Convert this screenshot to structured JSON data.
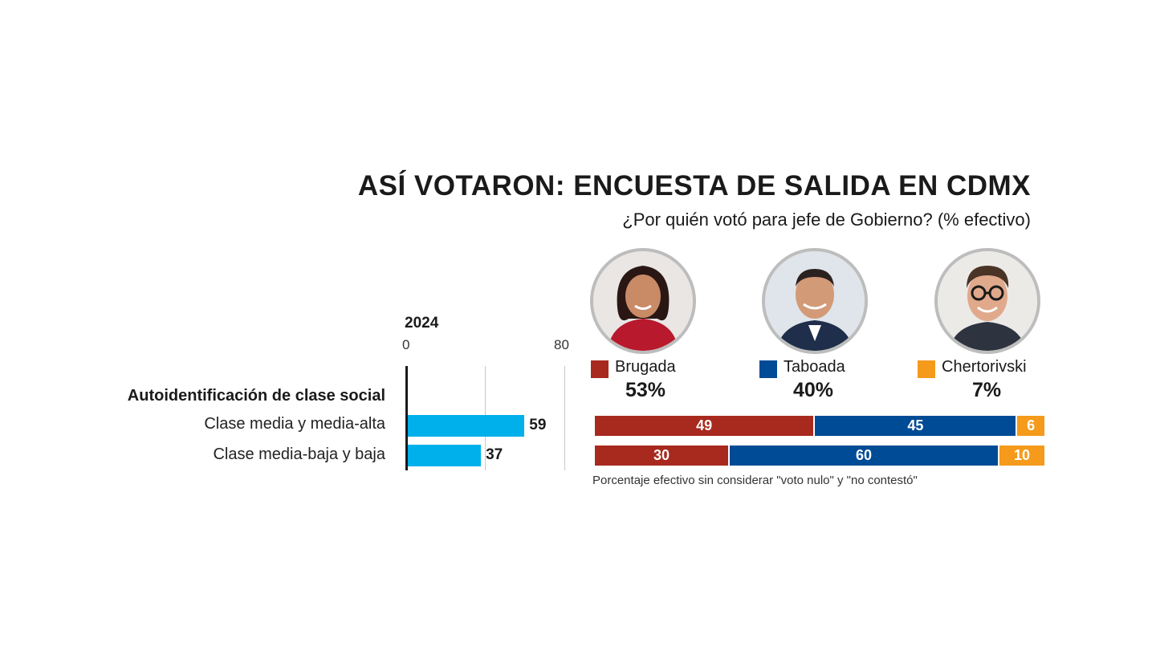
{
  "header": {
    "title": "ASÍ VOTARON: ENCUESTA DE SALIDA EN CDMX",
    "subtitle": "¿Por quién votó para jefe de Gobierno? (% efectivo)"
  },
  "colors": {
    "brugada": "#a8291e",
    "taboada": "#004b96",
    "chertorivski": "#f59a1b",
    "bar_2024": "#00b0ea"
  },
  "candidates": [
    {
      "name": "Brugada",
      "pct": "53%",
      "photo_icon": "candidate-photo-brugada"
    },
    {
      "name": "Taboada",
      "pct": "40%",
      "photo_icon": "candidate-photo-taboada"
    },
    {
      "name": "Chertorivski",
      "pct": "7%",
      "photo_icon": "candidate-photo-chertorivski"
    }
  ],
  "left_chart": {
    "year": "2024",
    "tick_min": "0",
    "tick_max": "80",
    "section_label": "Autoidentificación de clase social"
  },
  "footnote": "Porcentaje efectivo sin considerar \"voto nulo\" y \"no contestó\"",
  "chart_data": [
    {
      "type": "bar",
      "title": "2024",
      "categories": [
        "Clase media y media-alta",
        "Clase media-baja y baja"
      ],
      "values": [
        59,
        37
      ],
      "xlim": [
        0,
        80
      ],
      "grid": true
    },
    {
      "type": "bar",
      "stacked": true,
      "title": "¿Por quién votó para jefe de Gobierno? (% efectivo)",
      "categories": [
        "Clase media y media-alta",
        "Clase media-baja y baja"
      ],
      "series": [
        {
          "name": "Brugada",
          "values": [
            49,
            30
          ]
        },
        {
          "name": "Taboada",
          "values": [
            45,
            60
          ]
        },
        {
          "name": "Chertorivski",
          "values": [
            6,
            10
          ]
        }
      ],
      "legend": "top"
    }
  ]
}
